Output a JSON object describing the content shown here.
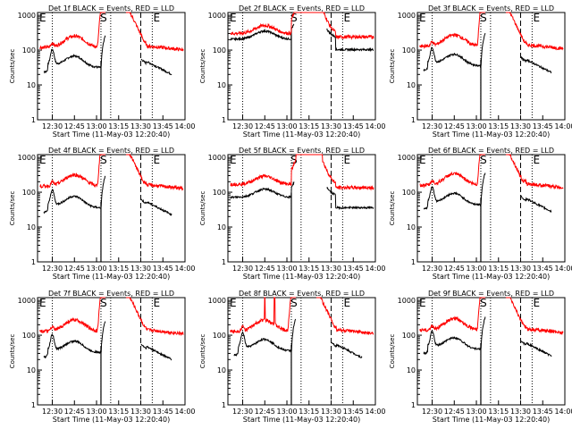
{
  "colors": {
    "events": "#000000",
    "lld": "#ff0000",
    "axis": "#000000",
    "background": "#ffffff"
  },
  "chart_data": [
    {
      "type": "line",
      "title": "Det 1f BLACK = Events, RED = LLD",
      "xlabel": "Start Time (11-May-03 12:20:40)",
      "ylabel": "Counts/sec",
      "yscale": "log",
      "ylim": [
        1,
        1200
      ],
      "xlim": [
        12.333,
        14.0
      ],
      "xticks": [
        "12:30",
        "12:45",
        "13:00",
        "13:15",
        "13:30",
        "13:45",
        "14:00"
      ],
      "yticks": [
        "1",
        "10",
        "100",
        "1000"
      ],
      "annotations": [
        "S",
        "E",
        "E"
      ],
      "series": [
        {
          "name": "Events",
          "color": "black",
          "profile": "A",
          "base": 40
        },
        {
          "name": "LLD",
          "color": "red",
          "profile": "A",
          "base": 120
        }
      ]
    },
    {
      "type": "line",
      "title": "Det 2f BLACK = Events, RED = LLD",
      "xlabel": "Start Time (11-May-03 12:20:40)",
      "ylabel": "Counts/sec",
      "yscale": "log",
      "ylim": [
        1,
        1200
      ],
      "xlim": [
        12.333,
        14.0
      ],
      "xticks": [
        "12:30",
        "12:45",
        "13:00",
        "13:15",
        "13:30",
        "13:45",
        "14:00"
      ],
      "yticks": [
        "1",
        "10",
        "100",
        "1000"
      ],
      "annotations": [
        "S",
        "E",
        "E"
      ],
      "series": [
        {
          "name": "Events",
          "color": "black",
          "profile": "B",
          "base": 230
        },
        {
          "name": "LLD",
          "color": "red",
          "profile": "B",
          "base": 300
        }
      ]
    },
    {
      "type": "line",
      "title": "Det 3f BLACK = Events, RED = LLD",
      "xlabel": "Start Time (11-May-03 12:20:40)",
      "ylabel": "Counts/sec",
      "yscale": "log",
      "ylim": [
        1,
        1200
      ],
      "xlim": [
        12.333,
        14.0
      ],
      "xticks": [
        "12:30",
        "12:45",
        "13:00",
        "13:15",
        "13:30",
        "13:45",
        "14:00"
      ],
      "yticks": [
        "1",
        "10",
        "100",
        "1000"
      ],
      "annotations": [
        "S",
        "E",
        "E"
      ],
      "series": [
        {
          "name": "Events",
          "color": "black",
          "profile": "A",
          "base": 45
        },
        {
          "name": "LLD",
          "color": "red",
          "profile": "A",
          "base": 130
        }
      ]
    },
    {
      "type": "line",
      "title": "Det 4f BLACK = Events, RED = LLD",
      "xlabel": "Start Time (11-May-03 12:20:40)",
      "ylabel": "Counts/sec",
      "yscale": "log",
      "ylim": [
        1,
        1200
      ],
      "xlim": [
        12.333,
        14.0
      ],
      "xticks": [
        "12:30",
        "12:45",
        "13:00",
        "13:15",
        "13:30",
        "13:45",
        "14:00"
      ],
      "yticks": [
        "1",
        "10",
        "100",
        "1000"
      ],
      "annotations": [
        "S",
        "E",
        "E"
      ],
      "series": [
        {
          "name": "Events",
          "color": "black",
          "profile": "A",
          "base": 45
        },
        {
          "name": "LLD",
          "color": "red",
          "profile": "A",
          "base": 150
        }
      ]
    },
    {
      "type": "line",
      "title": "Det 5f BLACK = Events, RED = LLD",
      "xlabel": "Start Time (11-May-03 12:20:40)",
      "ylabel": "Counts/sec",
      "yscale": "log",
      "ylim": [
        1,
        1200
      ],
      "xlim": [
        12.333,
        14.0
      ],
      "xticks": [
        "12:30",
        "12:45",
        "13:00",
        "13:15",
        "13:30",
        "13:45",
        "14:00"
      ],
      "yticks": [
        "1",
        "10",
        "100",
        "1000"
      ],
      "annotations": [
        "S",
        "E",
        "E"
      ],
      "series": [
        {
          "name": "Events",
          "color": "black",
          "profile": "B",
          "base": 80
        },
        {
          "name": "LLD",
          "color": "red",
          "profile": "B",
          "base": 170
        }
      ]
    },
    {
      "type": "line",
      "title": "Det 6f BLACK = Events, RED = LLD",
      "xlabel": "Start Time (11-May-03 12:20:40)",
      "ylabel": "Counts/sec",
      "yscale": "log",
      "ylim": [
        1,
        1200
      ],
      "xlim": [
        12.333,
        14.0
      ],
      "xticks": [
        "12:30",
        "12:45",
        "13:00",
        "13:15",
        "13:30",
        "13:45",
        "14:00"
      ],
      "yticks": [
        "1",
        "10",
        "100",
        "1000"
      ],
      "annotations": [
        "S",
        "E",
        "E"
      ],
      "series": [
        {
          "name": "Events",
          "color": "black",
          "profile": "A",
          "base": 55
        },
        {
          "name": "LLD",
          "color": "red",
          "profile": "A",
          "base": 160
        }
      ]
    },
    {
      "type": "line",
      "title": "Det 7f BLACK = Events, RED = LLD",
      "xlabel": "Start Time (11-May-03 12:20:40)",
      "ylabel": "Counts/sec",
      "yscale": "log",
      "ylim": [
        1,
        1200
      ],
      "xlim": [
        12.333,
        14.0
      ],
      "xticks": [
        "12:30",
        "12:45",
        "13:00",
        "13:15",
        "13:30",
        "13:45",
        "14:00"
      ],
      "yticks": [
        "1",
        "10",
        "100",
        "1000"
      ],
      "annotations": [
        "S",
        "E",
        "E"
      ],
      "series": [
        {
          "name": "Events",
          "color": "black",
          "profile": "A",
          "base": 40
        },
        {
          "name": "LLD",
          "color": "red",
          "profile": "A",
          "base": 130
        }
      ]
    },
    {
      "type": "line",
      "title": "Det 8f BLACK = Events, RED = LLD",
      "xlabel": "Start Time (11-May-03 12:20:40)",
      "ylabel": "Counts/sec",
      "yscale": "log",
      "ylim": [
        1,
        1200
      ],
      "xlim": [
        12.333,
        14.0
      ],
      "xticks": [
        "12:30",
        "12:45",
        "13:00",
        "13:15",
        "13:30",
        "13:45",
        "14:00"
      ],
      "yticks": [
        "1",
        "10",
        "100",
        "1000"
      ],
      "annotations": [
        "S",
        "E",
        "E"
      ],
      "series": [
        {
          "name": "Events",
          "color": "black",
          "profile": "C",
          "base": 45
        },
        {
          "name": "LLD",
          "color": "red",
          "profile": "C",
          "base": 130
        }
      ]
    },
    {
      "type": "line",
      "title": "Det 9f BLACK = Events, RED = LLD",
      "xlabel": "Start Time (11-May-03 12:20:40)",
      "ylabel": "Counts/sec",
      "yscale": "log",
      "ylim": [
        1,
        1200
      ],
      "xlim": [
        12.333,
        14.0
      ],
      "xticks": [
        "12:30",
        "12:45",
        "13:00",
        "13:15",
        "13:30",
        "13:45",
        "14:00"
      ],
      "yticks": [
        "1",
        "10",
        "100",
        "1000"
      ],
      "annotations": [
        "S",
        "E",
        "E"
      ],
      "series": [
        {
          "name": "Events",
          "color": "black",
          "profile": "A",
          "base": 50
        },
        {
          "name": "LLD",
          "color": "red",
          "profile": "A",
          "base": 140
        }
      ]
    }
  ]
}
